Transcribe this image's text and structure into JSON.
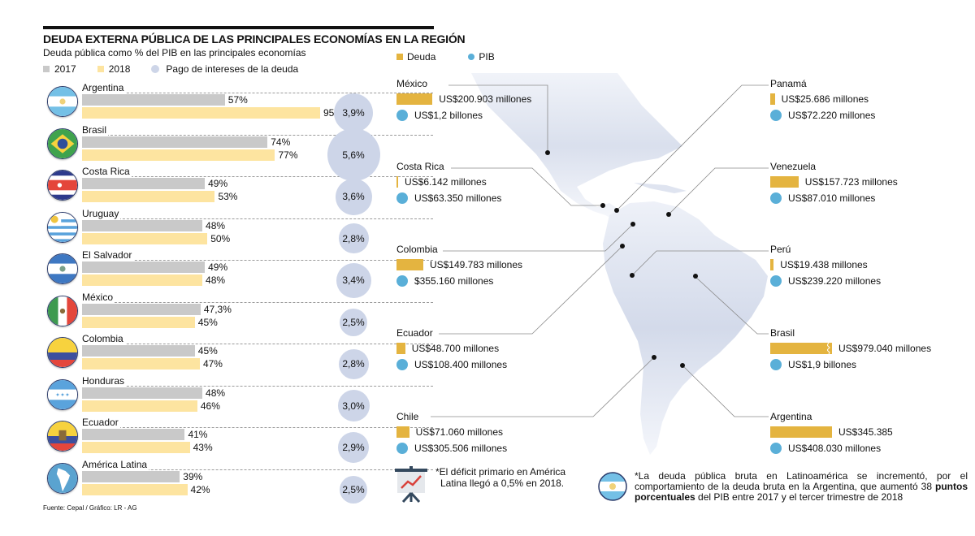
{
  "header": {
    "title": "DEUDA EXTERNA PÚBLICA DE LAS PRINCIPALES ECONOMÍAS EN LA REGIÓN",
    "subtitle": "Deuda pública como % del PIB en las principales economías"
  },
  "legend_left": {
    "y2017": "2017",
    "y2018": "2018",
    "interest": "Pago de intereses de la deuda"
  },
  "colors": {
    "bar2017": "#c9c9c9",
    "bar2018": "#fde4a0",
    "interest_circle": "#cdd5e8",
    "debt": "#e4b440",
    "gdp": "#5aafd8"
  },
  "chart_data": {
    "type": "bar",
    "title": "Deuda pública como % del PIB en las principales economías",
    "xlabel": "",
    "ylabel": "% del PIB",
    "categories": [
      "Argentina",
      "Brasil",
      "Costa Rica",
      "Uruguay",
      "El Salvador",
      "México",
      "Colombia",
      "Honduras",
      "Ecuador",
      "América Latina"
    ],
    "series": [
      {
        "name": "2017",
        "values": [
          57,
          74,
          49,
          48,
          49,
          47.3,
          45,
          48,
          41,
          39
        ],
        "labels": [
          "57%",
          "74%",
          "49%",
          "48%",
          "49%",
          "47,3%",
          "45%",
          "48%",
          "41%",
          "39%"
        ]
      },
      {
        "name": "2018",
        "values": [
          95,
          77,
          53,
          50,
          48,
          45,
          47,
          46,
          43,
          42
        ],
        "labels": [
          "95%",
          "77%",
          "53%",
          "50%",
          "48%",
          "45%",
          "47%",
          "46%",
          "43%",
          "42%"
        ]
      },
      {
        "name": "Pago de intereses de la deuda",
        "values": [
          3.9,
          5.6,
          3.6,
          2.8,
          3.4,
          2.5,
          2.8,
          3.0,
          2.9,
          2.5
        ],
        "labels": [
          "3,9%",
          "5,6%",
          "3,6%",
          "2,8%",
          "3,4%",
          "2,5%",
          "2,8%",
          "3,0%",
          "2,9%",
          "2,5%"
        ]
      }
    ],
    "xlim": [
      0,
      100
    ],
    "grid": false,
    "legend": "top-left"
  },
  "map_legend": {
    "debt": "Deuda",
    "gdp": "PIB"
  },
  "map_countries": [
    {
      "name": "México",
      "debt_millions": 200903,
      "debt": "US$200.903 millones",
      "gdp": "US$1,2 billones"
    },
    {
      "name": "Costa Rica",
      "debt_millions": 6142,
      "debt": "US$6.142 millones",
      "gdp": "US$63.350 millones"
    },
    {
      "name": "Colombia",
      "debt_millions": 149783,
      "debt": "US$149.783 millones",
      "gdp": "$355.160 millones"
    },
    {
      "name": "Ecuador",
      "debt_millions": 48700,
      "debt": "US$48.700 millones",
      "gdp": "US$108.400 millones"
    },
    {
      "name": "Chile",
      "debt_millions": 71060,
      "debt": "US$71.060 millones",
      "gdp": "US$305.506 millones"
    },
    {
      "name": "Panamá",
      "debt_millions": 25686,
      "debt": "US$25.686 millones",
      "gdp": "US$72.220 millones"
    },
    {
      "name": "Venezuela",
      "debt_millions": 157723,
      "debt": "US$157.723 millones",
      "gdp": "US$87.010 millones"
    },
    {
      "name": "Perú",
      "debt_millions": 19438,
      "debt": "US$19.438 millones",
      "gdp": "US$239.220 millones"
    },
    {
      "name": "Brasil",
      "debt_millions": 979040,
      "debt": "US$979.040 millones",
      "gdp": "US$1,9 billones"
    },
    {
      "name": "Argentina",
      "debt_millions": 345385,
      "debt": "US$345.385",
      "gdp": "US$408.030 millones"
    }
  ],
  "notes": {
    "deficit": [
      "*El déficit primario en América",
      "Latina llegó a 0,5% en 2018."
    ],
    "debt_pre": "*La deuda pública bruta en Latinoamérica se incrementó, por el comportamiento de la deuda bruta en la Argentina, que aumentó 38 ",
    "debt_bold": "puntos porcentuales",
    "debt_post": " del PIB entre 2017 y el tercer trimestre de 2018"
  },
  "source": "Fuente: Cepal / Gráfico: LR - AG"
}
